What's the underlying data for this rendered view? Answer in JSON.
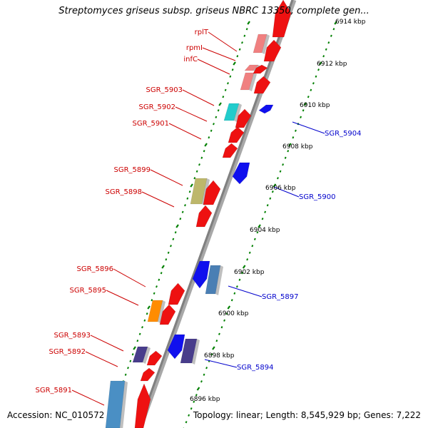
{
  "title": "Streptomyces griseus subsp. griseus NBRC 13350, complete gen...",
  "footer": {
    "accession": "Accession: NC_010572",
    "topology": "Topology: linear; Length: 8,545,929 bp; Genes: 7,222"
  },
  "colors": {
    "forward_label": "#cc0000",
    "reverse_label": "#0000cc",
    "backbone": "#808080",
    "ticks": "#008000",
    "gene_red": "#ee1111",
    "gene_pink": "#f08080",
    "gene_cyan": "#22cccc",
    "gene_khaki": "#bdb76b",
    "gene_orange": "#ff8c00",
    "gene_slate": "#483d8b",
    "gene_blue": "#1010ee",
    "gene_steel": "#4682b4"
  },
  "scale_labels": [
    "6914 kbp",
    "6912 kbp",
    "6910 kbp",
    "6908 kbp",
    "6906 kbp",
    "6904 kbp",
    "6902 kbp",
    "6900 kbp",
    "6898 kbp",
    "6896 kbp"
  ],
  "forward_labels": [
    "rplT",
    "rpmI",
    "infC",
    "SGR_5903",
    "SGR_5902",
    "SGR_5901",
    "SGR_5899",
    "SGR_5898",
    "SGR_5896",
    "SGR_5895",
    "SGR_5893",
    "SGR_5892",
    "SGR_5891"
  ],
  "reverse_labels": [
    "SGR_5904",
    "SGR_5900",
    "SGR_5897",
    "SGR_5894"
  ]
}
